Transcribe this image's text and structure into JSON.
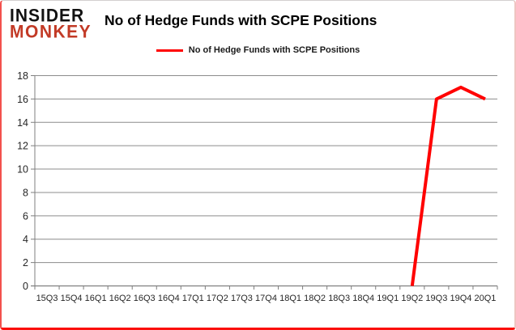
{
  "logo": {
    "line1": "INSIDER",
    "line2": "MONKEY",
    "monkey_color": "#c23a26"
  },
  "header": {
    "title": "No of Hedge Funds with SCPE Positions"
  },
  "legend": {
    "label": "No of Hedge Funds with SCPE Positions",
    "line_color": "#ff0000"
  },
  "chart_data": {
    "type": "line",
    "title": "No of Hedge Funds with SCPE Positions",
    "categories": [
      "15Q3",
      "15Q4",
      "16Q1",
      "16Q2",
      "16Q3",
      "16Q4",
      "17Q1",
      "17Q2",
      "17Q3",
      "17Q4",
      "18Q1",
      "18Q2",
      "18Q3",
      "18Q4",
      "19Q1",
      "19Q2",
      "19Q3",
      "19Q4",
      "20Q1"
    ],
    "series": [
      {
        "name": "No of Hedge Funds with SCPE Positions",
        "color": "#ff0000",
        "values": [
          null,
          null,
          null,
          null,
          null,
          null,
          null,
          null,
          null,
          null,
          null,
          null,
          null,
          null,
          null,
          0,
          16,
          17,
          16
        ]
      }
    ],
    "ylim": [
      0,
      18
    ],
    "yticks": [
      0,
      2,
      4,
      6,
      8,
      10,
      12,
      14,
      16,
      18
    ],
    "grid": "horizontal",
    "legend_position": "top-center",
    "xlabel": "",
    "ylabel": ""
  },
  "style": {
    "grid_color": "#8c8c8c",
    "axis_color": "#7f7f7f",
    "tick_label_color": "#262626"
  }
}
